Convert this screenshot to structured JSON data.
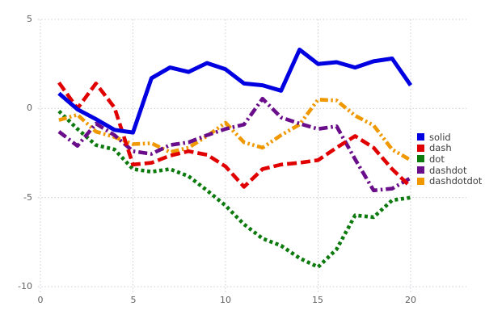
{
  "figure": {
    "background": "#ffffff",
    "grid_color": "#ccccd4",
    "tick_color": "#616161"
  },
  "legend": {
    "position": "right",
    "items": [
      {
        "label": "solid",
        "color": "#0000e0"
      },
      {
        "label": "dash",
        "color": "#e00000"
      },
      {
        "label": "dot",
        "color": "#0c7a0c"
      },
      {
        "label": "dashdot",
        "color": "#6a0d8a"
      },
      {
        "label": "dashdotdot",
        "color": "#ef9800"
      }
    ]
  },
  "chart_data": {
    "type": "line",
    "title": "",
    "xlabel": "",
    "ylabel": "",
    "xlim": [
      0,
      20
    ],
    "ylim": [
      -10,
      5
    ],
    "grid": "dotted",
    "legend_position": "right",
    "x": [
      1,
      2,
      3,
      4,
      5,
      6,
      7,
      8,
      9,
      10,
      11,
      12,
      13,
      14,
      15,
      16,
      17,
      18,
      19,
      20
    ],
    "xticks": [
      {
        "label": "0",
        "v": 0
      },
      {
        "label": "5",
        "v": 5
      },
      {
        "label": "10",
        "v": 10
      },
      {
        "label": "15",
        "v": 15
      },
      {
        "label": "20",
        "v": 20
      }
    ],
    "yticks": [
      {
        "label": "5",
        "v": 5
      },
      {
        "label": "0",
        "v": 0
      },
      {
        "label": "-5",
        "v": -5
      },
      {
        "label": "-10",
        "v": -10
      }
    ],
    "series": [
      {
        "name": "solid",
        "color": "#0000e0",
        "style": "solid",
        "values": [
          0.85,
          -0.05,
          -0.6,
          -1.2,
          -1.35,
          1.7,
          2.3,
          2.05,
          2.55,
          2.2,
          1.4,
          1.3,
          1.0,
          3.3,
          2.5,
          2.6,
          2.3,
          2.65,
          2.8,
          1.3
        ]
      },
      {
        "name": "dash",
        "color": "#e00000",
        "style": "dash",
        "values": [
          1.45,
          0.0,
          1.4,
          0.05,
          -3.15,
          -3.05,
          -2.65,
          -2.4,
          -2.6,
          -3.25,
          -4.4,
          -3.4,
          -3.15,
          -3.05,
          -2.9,
          -2.2,
          -1.55,
          -2.2,
          -3.4,
          -4.4
        ]
      },
      {
        "name": "dot",
        "color": "#0c7a0c",
        "style": "dot",
        "values": [
          -0.15,
          -1.15,
          -2.05,
          -2.3,
          -3.4,
          -3.55,
          -3.4,
          -3.8,
          -4.6,
          -5.45,
          -6.5,
          -7.3,
          -7.7,
          -8.4,
          -8.9,
          -7.9,
          -6.0,
          -6.1,
          -5.15,
          -5.0
        ]
      },
      {
        "name": "dashdot",
        "color": "#6a0d8a",
        "style": "dashdot",
        "values": [
          -1.3,
          -2.1,
          -0.85,
          -1.5,
          -2.4,
          -2.55,
          -2.05,
          -1.9,
          -1.5,
          -1.15,
          -0.9,
          0.55,
          -0.5,
          -0.85,
          -1.15,
          -1.0,
          -2.85,
          -4.6,
          -4.5,
          -3.9
        ]
      },
      {
        "name": "dashdotdot",
        "color": "#ef9800",
        "style": "dashdotdot",
        "values": [
          -0.65,
          -0.35,
          -1.3,
          -1.6,
          -2.0,
          -1.95,
          -2.45,
          -2.2,
          -1.55,
          -0.8,
          -1.9,
          -2.2,
          -1.5,
          -0.9,
          0.5,
          0.45,
          -0.4,
          -0.95,
          -2.3,
          -2.9
        ]
      }
    ]
  }
}
